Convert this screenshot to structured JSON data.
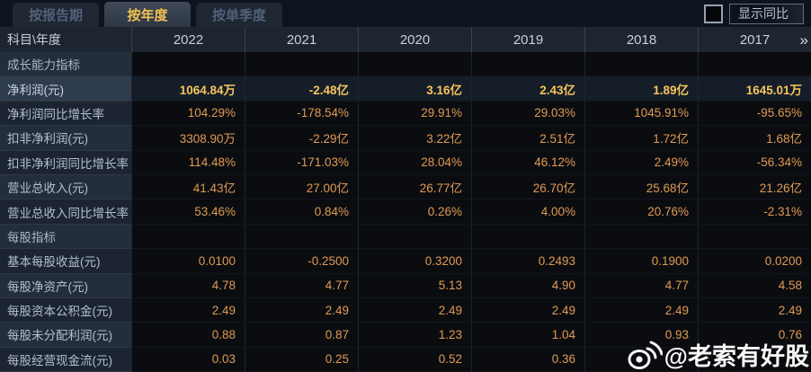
{
  "tab_bar": {
    "tabs": [
      {
        "label": "按报告期",
        "active": false
      },
      {
        "label": "按年度",
        "active": true
      },
      {
        "label": "按单季度",
        "active": false
      }
    ],
    "show_yoy": {
      "label": "显示同比",
      "checked": false
    }
  },
  "table": {
    "corner_label": "科目\\年度",
    "years": [
      "2022",
      "2021",
      "2020",
      "2019",
      "2018",
      "2017"
    ],
    "more_years_icon": "»",
    "rows": [
      {
        "label": "成长能力指标",
        "style": "section",
        "values": [
          "",
          "",
          "",
          "",
          "",
          ""
        ]
      },
      {
        "label": "净利润(元)",
        "style": "highlight",
        "values": [
          "1064.84万",
          "-2.48亿",
          "3.16亿",
          "2.43亿",
          "1.89亿",
          "1645.01万"
        ]
      },
      {
        "label": "净利润同比增长率",
        "style": "normal",
        "values": [
          "104.29%",
          "-178.54%",
          "29.91%",
          "29.03%",
          "1045.91%",
          "-95.65%"
        ]
      },
      {
        "label": "扣非净利润(元)",
        "style": "normal",
        "values": [
          "3308.90万",
          "-2.29亿",
          "3.22亿",
          "2.51亿",
          "1.72亿",
          "1.68亿"
        ]
      },
      {
        "label": "扣非净利润同比增长率",
        "style": "normal",
        "values": [
          "114.48%",
          "-171.03%",
          "28.04%",
          "46.12%",
          "2.49%",
          "-56.34%"
        ]
      },
      {
        "label": "营业总收入(元)",
        "style": "normal",
        "values": [
          "41.43亿",
          "27.00亿",
          "26.77亿",
          "26.70亿",
          "25.68亿",
          "21.26亿"
        ]
      },
      {
        "label": "营业总收入同比增长率",
        "style": "normal",
        "values": [
          "53.46%",
          "0.84%",
          "0.26%",
          "4.00%",
          "20.76%",
          "-2.31%"
        ]
      },
      {
        "label": "每股指标",
        "style": "section",
        "values": [
          "",
          "",
          "",
          "",
          "",
          ""
        ]
      },
      {
        "label": "基本每股收益(元)",
        "style": "normal",
        "values": [
          "0.0100",
          "-0.2500",
          "0.3200",
          "0.2493",
          "0.1900",
          "0.0200"
        ]
      },
      {
        "label": "每股净资产(元)",
        "style": "normal",
        "values": [
          "4.78",
          "4.77",
          "5.13",
          "4.90",
          "4.77",
          "4.58"
        ]
      },
      {
        "label": "每股资本公积金(元)",
        "style": "normal",
        "values": [
          "2.49",
          "2.49",
          "2.49",
          "2.49",
          "2.49",
          "2.49"
        ]
      },
      {
        "label": "每股未分配利润(元)",
        "style": "normal",
        "values": [
          "0.88",
          "0.87",
          "1.23",
          "1.04",
          "0.93",
          "0.76"
        ]
      },
      {
        "label": "每股经营现金流(元)",
        "style": "normal",
        "values": [
          "0.03",
          "0.25",
          "0.52",
          "0.36",
          "",
          ""
        ]
      }
    ]
  },
  "watermark": {
    "icon": "weibo-icon",
    "text": "@老索有好股"
  },
  "colors": {
    "tabbar_bg": "#0d141d",
    "tab_inactive_bg": "#1e2732",
    "tab_inactive_text": "#51607a",
    "tab_active_text": "#f2c150",
    "header_bg": "#1d2531",
    "header_text": "#c6cfdb",
    "label_bg": "#232e3c",
    "label_bg_alt": "#1b2430",
    "label_text": "#b2bfce",
    "value_bg": "#0a0c10",
    "value_orange": "#e09a52",
    "accent_gold": "#f6c45c",
    "highlight_label_bg": "#2f3c4d",
    "highlight_value_bg": "#151d29",
    "watermark_color": "#ffffff"
  }
}
